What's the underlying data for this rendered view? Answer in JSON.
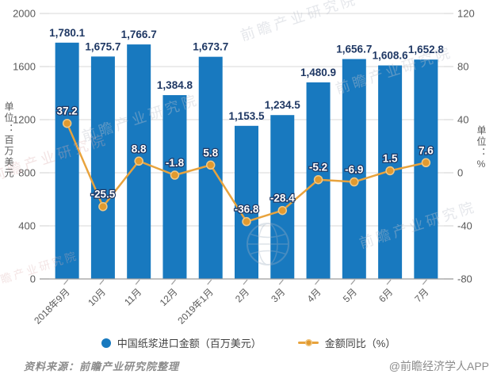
{
  "watermark": {
    "text": "前瞻产业研究院"
  },
  "chart_data": {
    "type": "bar+line",
    "categories": [
      "2018年9月",
      "10月",
      "11月",
      "12月",
      "2019年1月",
      "2月",
      "3月",
      "4月",
      "5月",
      "6月",
      "7月"
    ],
    "series": [
      {
        "name": "中国纸浆进口金额（百万美元）",
        "type": "bar",
        "axis": "left",
        "values": [
          1780.1,
          1675.7,
          1766.7,
          1384.8,
          1673.7,
          1153.5,
          1234.5,
          1480.9,
          1656.7,
          1608.6,
          1652.8
        ],
        "labels": [
          "1,780.1",
          "1,675.7",
          "1,766.7",
          "1,384.8",
          "1,673.7",
          "1,153.5",
          "1,234.5",
          "1,480.9",
          "1,656.7",
          "1,608.6",
          "1,652.8"
        ]
      },
      {
        "name": "金额同比（%）",
        "type": "line",
        "axis": "right",
        "values": [
          37.2,
          -25.5,
          8.8,
          -1.8,
          5.8,
          -36.8,
          -28.4,
          -5.2,
          -6.9,
          1.5,
          7.6
        ],
        "labels": [
          "37.2",
          "-25.5",
          "8.8",
          "-1.8",
          "5.8",
          "-36.8",
          "-28.4",
          "-5.2",
          "-6.9",
          "1.5",
          "7.6"
        ]
      }
    ],
    "left_axis": {
      "title": "单位：百万美元",
      "min": 0,
      "max": 2000,
      "ticks": [
        2000,
        1600,
        1200,
        800,
        400,
        0
      ]
    },
    "right_axis": {
      "title": "单位：%",
      "min": -80,
      "max": 120,
      "ticks": [
        120,
        80,
        40,
        0,
        -40,
        -80
      ]
    },
    "grid": true,
    "legend_position": "bottom"
  },
  "legend": {
    "items": [
      {
        "label": "中国纸浆进口金额（百万美元）",
        "marker": "circle"
      },
      {
        "label": "金额同比（%）",
        "marker": "line-dot"
      }
    ]
  },
  "footer": {
    "source": "资料来源：前瞻产业研究院整理",
    "credit": "@前瞻经济学人APP"
  },
  "colors": {
    "bar": "#1879BF",
    "line": "#E8A33D",
    "dot": "#E19A2F",
    "dot_ring": "#F0C987",
    "bar_label": "#1F3864",
    "line_label_fill": "#FFFFFF",
    "line_label_stroke": "#1F3864",
    "tick": "#595959",
    "grid": "#D9D9D9",
    "axis": "#9C9C9C"
  }
}
